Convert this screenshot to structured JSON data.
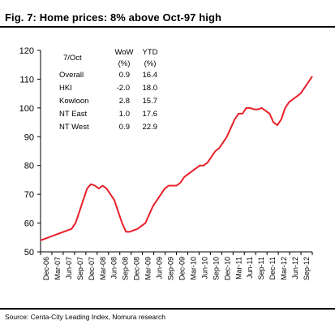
{
  "figure": {
    "title": "Fig. 7:  Home prices: 8% above Oct-97 high",
    "source": "Source: Centa-City Leading Index, Nomura research"
  },
  "table": {
    "header": {
      "label": "7/Oct",
      "col1": "WoW",
      "col2": "YTD",
      "unit1": "(%)",
      "unit2": "(%)"
    },
    "rows": [
      {
        "label": "Overall",
        "wow": "0.9",
        "ytd": "16.4"
      },
      {
        "label": "HKI",
        "wow": "-2.0",
        "ytd": "18.0"
      },
      {
        "label": "Kowloon",
        "wow": "2.8",
        "ytd": "15.7"
      },
      {
        "label": "NT East",
        "wow": "1.0",
        "ytd": "17.6"
      },
      {
        "label": "NT West",
        "wow": "0.9",
        "ytd": "22.9"
      }
    ]
  },
  "chart_data": {
    "type": "line",
    "title": "",
    "xlabel": "",
    "ylabel": "",
    "ylim": [
      50,
      120
    ],
    "yticks": [
      50,
      60,
      70,
      80,
      90,
      100,
      110,
      120
    ],
    "x_ticks": [
      "Dec-06",
      "Mar-07",
      "Jun-07",
      "Sep-07",
      "Dec-07",
      "Mar-08",
      "Jun-08",
      "Sep-08",
      "Dec-08",
      "Mar-09",
      "Jun-09",
      "Sep-09",
      "Dec-09",
      "Mar-10",
      "Jun-10",
      "Sep-10",
      "Dec-10",
      "Mar-11",
      "Jun-11",
      "Sep-11",
      "Dec-11",
      "Mar-12",
      "Jun-12",
      "Sep-12"
    ],
    "series": [
      {
        "color": "#e8202a",
        "x": [
          "Dec-06",
          "Jan-07",
          "Feb-07",
          "Mar-07",
          "Apr-07",
          "May-07",
          "Jun-07",
          "Jul-07",
          "Aug-07",
          "Sep-07",
          "Oct-07",
          "Nov-07",
          "Dec-07",
          "Jan-08",
          "Feb-08",
          "Mar-08",
          "Apr-08",
          "May-08",
          "Jun-08",
          "Jul-08",
          "Aug-08",
          "Sep-08",
          "Oct-08",
          "Nov-08",
          "Dec-08",
          "Jan-09",
          "Feb-09",
          "Mar-09",
          "Apr-09",
          "May-09",
          "Jun-09",
          "Jul-09",
          "Aug-09",
          "Sep-09",
          "Oct-09",
          "Nov-09",
          "Dec-09",
          "Jan-10",
          "Feb-10",
          "Mar-10",
          "Apr-10",
          "May-10",
          "Jun-10",
          "Jul-10",
          "Aug-10",
          "Sep-10",
          "Oct-10",
          "Nov-10",
          "Dec-10",
          "Jan-11",
          "Feb-11",
          "Mar-11",
          "Apr-11",
          "May-11",
          "Jun-11",
          "Jul-11",
          "Aug-11",
          "Sep-11",
          "Oct-11",
          "Nov-11",
          "Dec-11",
          "Jan-12",
          "Feb-12",
          "Mar-12",
          "Apr-12",
          "May-12",
          "Jun-12",
          "Jul-12",
          "Aug-12",
          "Sep-12",
          "Oct-12"
        ],
        "values": [
          54,
          54.5,
          55,
          55.5,
          56,
          56.5,
          57,
          57.5,
          58,
          60,
          64,
          68,
          72,
          73.5,
          73,
          72,
          73,
          72,
          70,
          68,
          64,
          60,
          57,
          57,
          57.5,
          58,
          59,
          60,
          63,
          66,
          68,
          70,
          72,
          73,
          73,
          73,
          74,
          76,
          77,
          78,
          79,
          80,
          80,
          81,
          83,
          85,
          86,
          88,
          90,
          93,
          96,
          98,
          98,
          100,
          100,
          99.5,
          99.5,
          100,
          99,
          98,
          95,
          94,
          96,
          100,
          102,
          103,
          104,
          105,
          107,
          109,
          111
        ]
      }
    ]
  }
}
